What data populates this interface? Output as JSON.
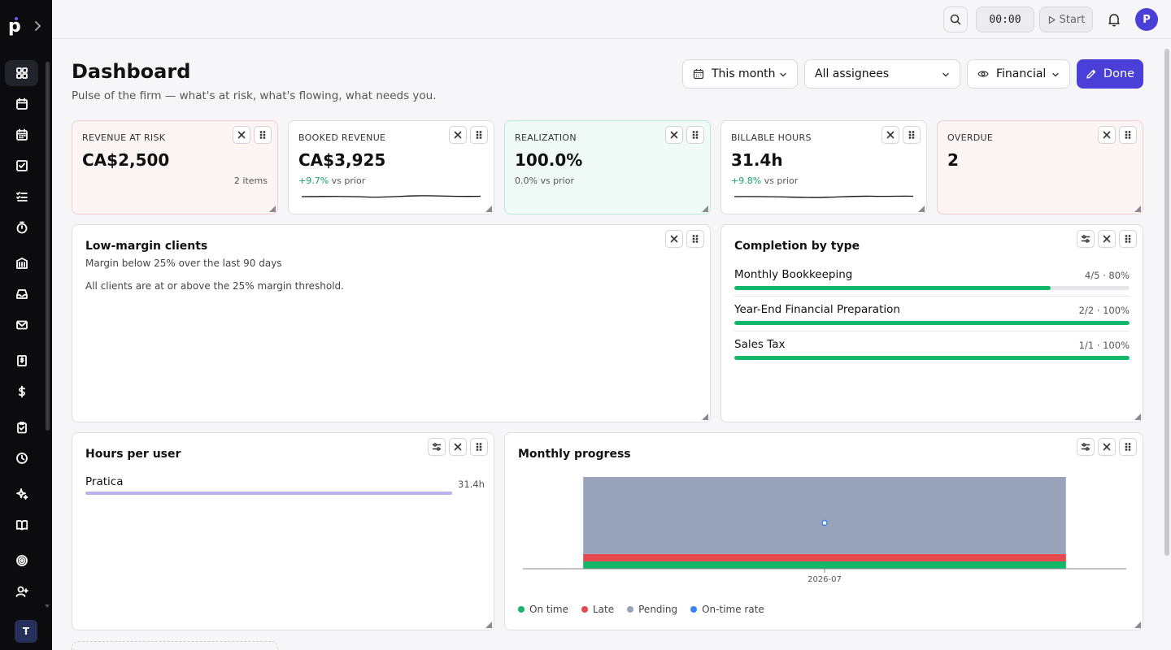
{
  "topbar": {
    "timer": "00:00",
    "start_label": "Start",
    "avatar_initial": "P"
  },
  "sidebar": {
    "team_initial": "T",
    "items": [
      {
        "name": "dashboard-icon",
        "active": true
      },
      {
        "name": "calendar-icon"
      },
      {
        "name": "schedule-icon"
      },
      {
        "name": "tasks-icon"
      },
      {
        "name": "checklist-icon"
      },
      {
        "name": "timer-icon"
      },
      {
        "name": "building-icon"
      },
      {
        "name": "inbox-icon"
      },
      {
        "name": "mail-icon"
      },
      {
        "name": "invoice-icon"
      },
      {
        "name": "dollar-icon"
      },
      {
        "name": "clipboard-icon"
      },
      {
        "name": "clock-icon"
      },
      {
        "name": "sparkles-icon"
      },
      {
        "name": "book-icon"
      },
      {
        "name": "target-icon"
      },
      {
        "name": "add-user-icon"
      }
    ]
  },
  "header": {
    "title": "Dashboard",
    "subtitle": "Pulse of the firm — what's at risk, what's flowing, what needs you.",
    "period": "This month",
    "assignees": "All assignees",
    "view": "Financial",
    "done_label": "Done"
  },
  "kpis": {
    "risk": {
      "label": "REVENUE AT RISK",
      "value": "CA$2,500",
      "note": "2 items"
    },
    "booked": {
      "label": "BOOKED REVENUE",
      "value": "CA$3,925",
      "delta": "+9.7%",
      "delta_suffix": "vs prior"
    },
    "realization": {
      "label": "REALIZATION",
      "value": "100.0%",
      "delta": "0.0% vs prior"
    },
    "billable": {
      "label": "BILLABLE HOURS",
      "value": "31.4h",
      "delta": "+9.8%",
      "delta_suffix": "vs prior"
    },
    "overdue": {
      "label": "OVERDUE",
      "value": "2"
    }
  },
  "low_margin": {
    "title": "Low-margin clients",
    "subtitle": "Margin below 25% over the last 90 days",
    "message": "All clients are at or above the 25% margin threshold."
  },
  "completion": {
    "title": "Completion by type",
    "rows": [
      {
        "name": "Monthly Bookkeeping",
        "value": "4/5 · 80%",
        "fraction": 0.8
      },
      {
        "name": "Year-End Financial Preparation",
        "value": "2/2 · 100%",
        "fraction": 1.0
      },
      {
        "name": "Sales Tax",
        "value": "1/1 · 100%",
        "fraction": 1.0
      }
    ]
  },
  "hours": {
    "title": "Hours per user",
    "user": "Pratica",
    "value": "31.4h",
    "fraction": 1.0
  },
  "monthly": {
    "title": "Monthly progress",
    "legend": [
      "On time",
      "Late",
      "Pending",
      "On-time rate"
    ],
    "colors": {
      "on_time": "#12b76a",
      "late": "#e5484d",
      "pending": "#98a2b8",
      "rate": "#3b82f6"
    }
  },
  "chart_data": {
    "type": "bar",
    "categories": [
      "2026-07"
    ],
    "series": [
      {
        "name": "On time",
        "values": [
          1
        ]
      },
      {
        "name": "Late",
        "values": [
          1
        ]
      },
      {
        "name": "Pending",
        "values": [
          10.5
        ]
      },
      {
        "name": "On-time rate",
        "values": [
          0.5
        ]
      }
    ],
    "xlabel": "",
    "ylabel": "",
    "legend": "bottom-left"
  }
}
